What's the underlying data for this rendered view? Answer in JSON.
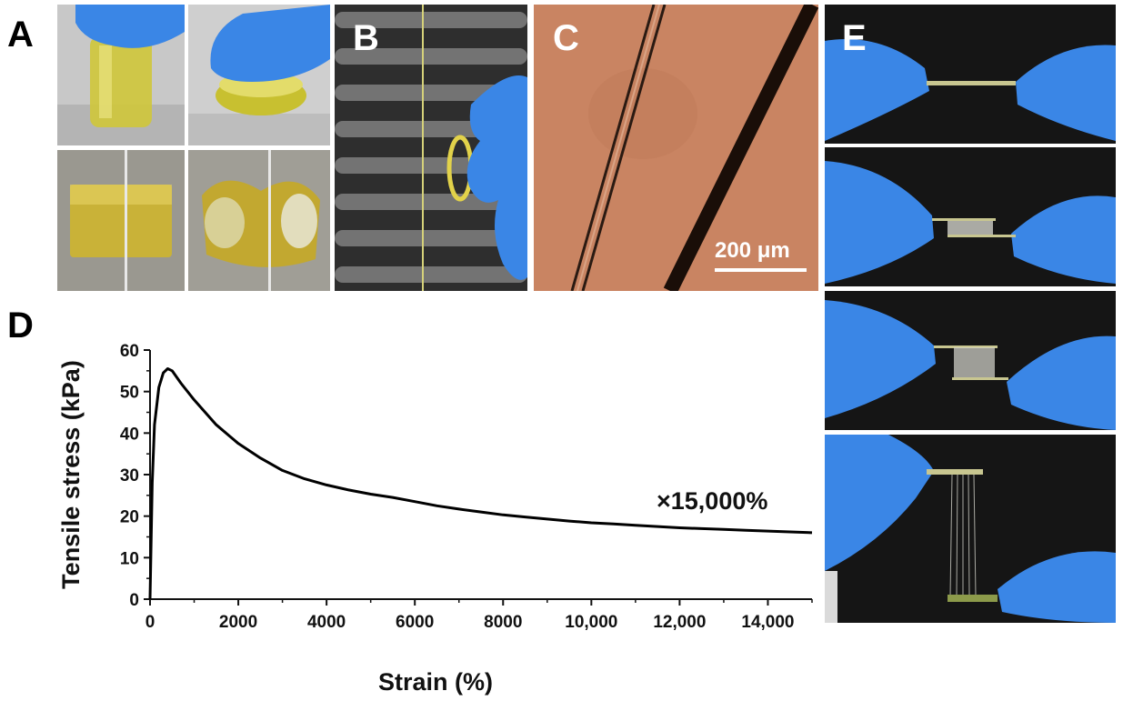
{
  "panels": {
    "a": "A",
    "b": "B",
    "c": "C",
    "d": "D",
    "e": "E"
  },
  "scale_bar": "200 μm",
  "colors": {
    "glove": "#3a86e6",
    "gel": "#d4cc3a",
    "micrograph": "#c98462",
    "dark_bg": "#151515"
  },
  "chart_data": {
    "type": "line",
    "xlabel": "Strain (%)",
    "ylabel": "Tensile stress (kPa)",
    "xlim": [
      0,
      15000
    ],
    "ylim": [
      0,
      60
    ],
    "x_ticks": [
      0,
      2000,
      4000,
      6000,
      8000,
      10000,
      12000,
      14000
    ],
    "x_tick_labels": [
      "0",
      "2000",
      "4000",
      "6000",
      "8000",
      "10,000",
      "12,000",
      "14,000"
    ],
    "y_ticks": [
      0,
      10,
      20,
      30,
      40,
      50,
      60
    ],
    "y_tick_labels": [
      "0",
      "10",
      "20",
      "30",
      "40",
      "50",
      "60"
    ],
    "annotation": "×15,000%",
    "grid": false,
    "series": [
      {
        "x": [
          0,
          50,
          100,
          200,
          300,
          400,
          500,
          700,
          1000,
          1500,
          2000,
          2500,
          3000,
          3500,
          4000,
          4500,
          5000,
          5500,
          6000,
          6500,
          7000,
          7500,
          8000,
          8500,
          9000,
          9500,
          10000,
          10500,
          11000,
          11500,
          12000,
          12500,
          13000,
          13500,
          14000,
          14500,
          15000
        ],
        "y": [
          0,
          28,
          42,
          51,
          54.5,
          55.5,
          55,
          52,
          48,
          42,
          37.5,
          34,
          31,
          29,
          27.5,
          26.3,
          25.3,
          24.5,
          23.5,
          22.5,
          21.7,
          21,
          20.3,
          19.8,
          19.3,
          18.8,
          18.4,
          18.1,
          17.8,
          17.5,
          17.2,
          17,
          16.8,
          16.6,
          16.4,
          16.2,
          16
        ]
      }
    ]
  }
}
